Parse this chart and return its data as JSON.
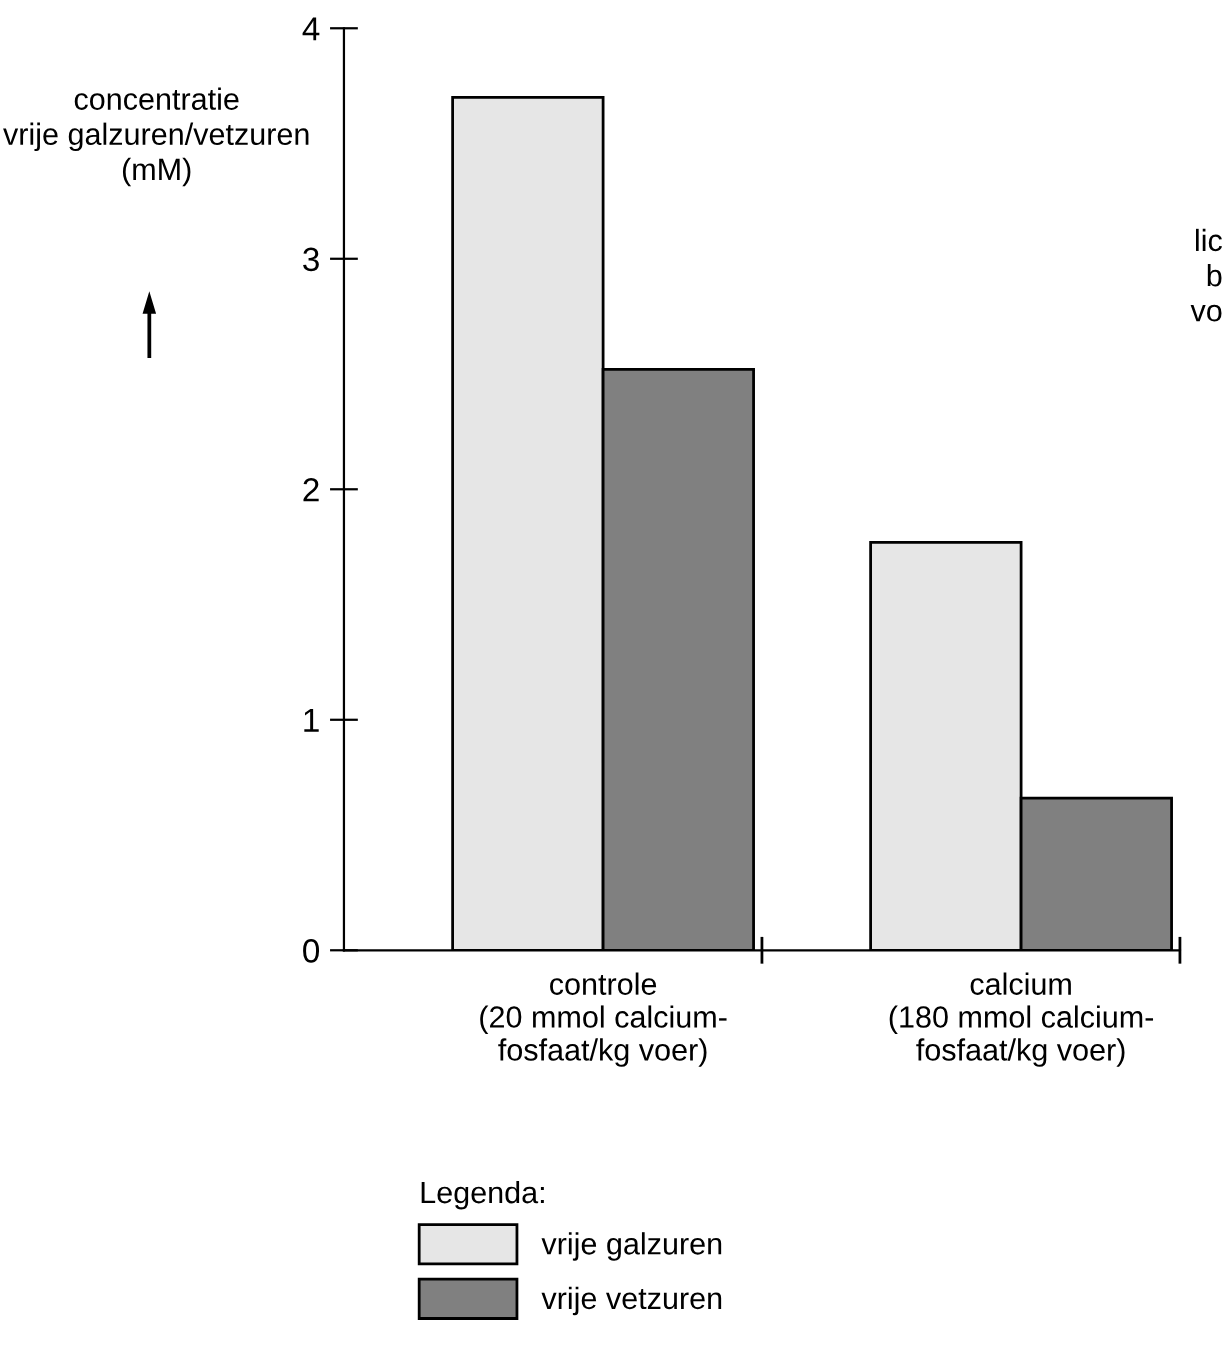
{
  "chart_data": {
    "type": "bar",
    "ylabel": "concentratie\nvrije galzuren/vetzuren\n(mM)",
    "categories": [
      "controle\n(20 mmol calcium-\nfosfaat/kg voer)",
      "calcium\n(180 mmol calcium-\nfosfaat/kg voer)"
    ],
    "series": [
      {
        "name": "vrije galzuren",
        "color": "#e6e6e6",
        "values": [
          3.7,
          1.77
        ]
      },
      {
        "name": "vrije vetzuren",
        "color": "#808080",
        "values": [
          2.52,
          0.66
        ]
      }
    ],
    "ylim": [
      0,
      4
    ],
    "yticks": [
      0,
      1,
      2,
      3,
      4
    ],
    "legend": "bottom",
    "legend_title": "Legenda:",
    "annotations": [
      "lic\nb\nvo"
    ]
  }
}
